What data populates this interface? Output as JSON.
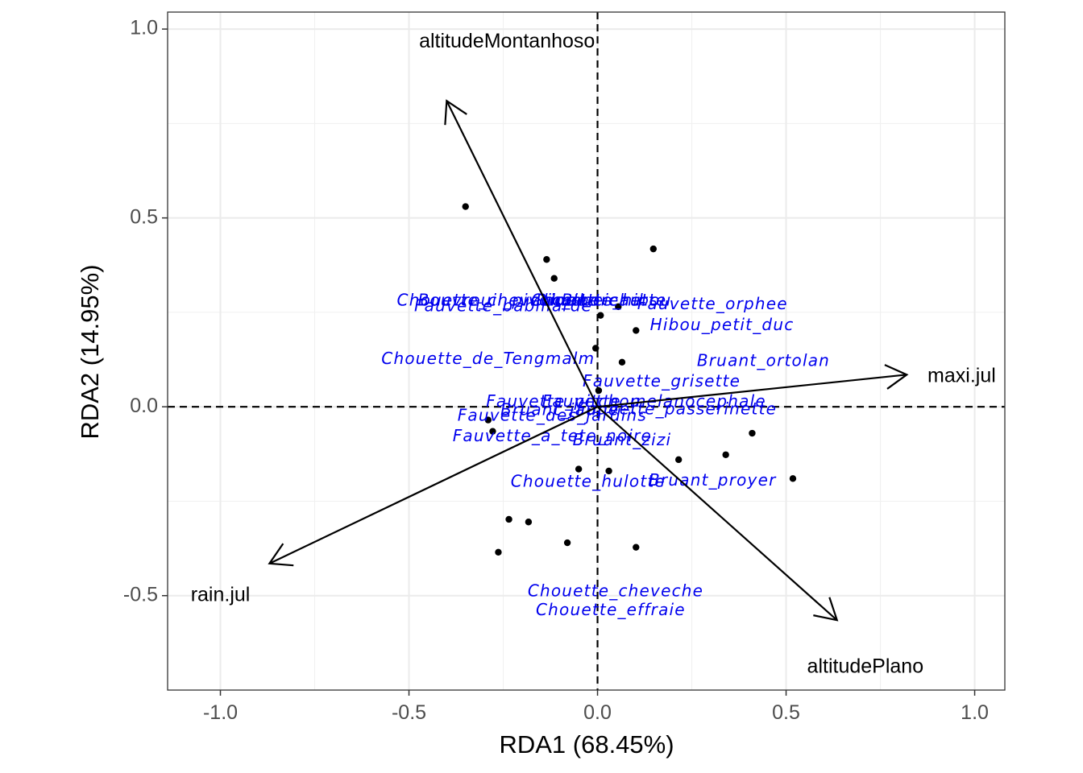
{
  "chart_data": {
    "type": "scatter",
    "xlabel": "RDA1 (68.45%)",
    "ylabel": "RDA2 (14.95%)",
    "xlim": [
      -1.14,
      1.08
    ],
    "ylim": [
      -0.75,
      1.045
    ],
    "x_ticks": [
      -1.0,
      -0.5,
      0.0,
      0.5,
      1.0
    ],
    "x_tick_labels": [
      "-1.0",
      "-0.5",
      "0.0",
      "0.5",
      "1.0"
    ],
    "y_ticks": [
      -0.5,
      0.0,
      0.5,
      1.0
    ],
    "y_tick_labels": [
      "-0.5",
      "0.0",
      "0.5",
      "1.0"
    ],
    "grid": true,
    "reference_lines": {
      "x": 0,
      "y": 0,
      "style": "dashed"
    },
    "sites": [
      {
        "x": -0.35,
        "y": 0.53
      },
      {
        "x": -0.135,
        "y": 0.39
      },
      {
        "x": -0.115,
        "y": 0.34
      },
      {
        "x": 0.148,
        "y": 0.418
      },
      {
        "x": 0.055,
        "y": 0.265
      },
      {
        "x": 0.008,
        "y": 0.242
      },
      {
        "x": 0.102,
        "y": 0.202
      },
      {
        "x": -0.005,
        "y": 0.155
      },
      {
        "x": 0.065,
        "y": 0.118
      },
      {
        "x": 0.003,
        "y": 0.043
      },
      {
        "x": -0.29,
        "y": -0.035
      },
      {
        "x": -0.278,
        "y": -0.065
      },
      {
        "x": 0.41,
        "y": -0.07
      },
      {
        "x": 0.34,
        "y": -0.127
      },
      {
        "x": 0.215,
        "y": -0.14
      },
      {
        "x": 0.518,
        "y": -0.19
      },
      {
        "x": -0.05,
        "y": -0.165
      },
      {
        "x": 0.03,
        "y": -0.17
      },
      {
        "x": -0.235,
        "y": -0.298
      },
      {
        "x": -0.183,
        "y": -0.305
      },
      {
        "x": -0.08,
        "y": -0.36
      },
      {
        "x": 0.102,
        "y": -0.372
      },
      {
        "x": -0.263,
        "y": -0.385
      }
    ],
    "species": [
      {
        "name": "Chouette_chevechette",
        "x": -0.265,
        "y": 0.28
      },
      {
        "name": "Bouvreuil_pivoine",
        "x": -0.265,
        "y": 0.28
      },
      {
        "name": "Bihoreau",
        "x": 0.01,
        "y": 0.28
      },
      {
        "name": "Chouette_hibou",
        "x": 0.01,
        "y": 0.28
      },
      {
        "name": "Pic_epeichette",
        "x": 0.01,
        "y": 0.28
      },
      {
        "name": "Fauvette_babillarde",
        "x": -0.25,
        "y": 0.265
      },
      {
        "name": "Fauvette_orphee",
        "x": 0.305,
        "y": 0.27
      },
      {
        "name": "Hibou_petit_duc",
        "x": 0.33,
        "y": 0.215
      },
      {
        "name": "Chouette_de_Tengmalm",
        "x": -0.29,
        "y": 0.125
      },
      {
        "name": "Bruant_ortolan",
        "x": 0.44,
        "y": 0.12
      },
      {
        "name": "Fauvette_grisette",
        "x": 0.17,
        "y": 0.065
      },
      {
        "name": "Fauvette_pitchou",
        "x": -0.09,
        "y": 0.012
      },
      {
        "name": "Fauvette_melanocephale",
        "x": 0.15,
        "y": 0.012
      },
      {
        "name": "Bruant_jaune",
        "x": -0.1,
        "y": -0.01
      },
      {
        "name": "Fauvette_passerinette",
        "x": 0.21,
        "y": -0.008
      },
      {
        "name": "Fauvette_des_jardins",
        "x": -0.12,
        "y": -0.025
      },
      {
        "name": "Fauvette_a_tete_noire",
        "x": -0.12,
        "y": -0.08
      },
      {
        "name": "Bruant_zizi",
        "x": 0.065,
        "y": -0.09
      },
      {
        "name": "Chouette_hulotte",
        "x": -0.025,
        "y": -0.2
      },
      {
        "name": "Bruant_proyer",
        "x": 0.305,
        "y": -0.197
      },
      {
        "name": "Chouette_cheveche",
        "x": 0.048,
        "y": -0.49
      },
      {
        "name": "Chouette_effraie",
        "x": 0.035,
        "y": -0.54
      }
    ],
    "biplot": [
      {
        "name": "altitudeMontanhoso",
        "x": -0.4,
        "y": 0.81,
        "label_x": -0.24,
        "label_y": 0.965,
        "anchor": "middle"
      },
      {
        "name": "maxi.jul",
        "x": 0.82,
        "y": 0.085,
        "label_x": 0.875,
        "label_y": 0.08,
        "anchor": "start"
      },
      {
        "name": "rain.jul",
        "x": -0.87,
        "y": -0.415,
        "label_x": -1.0,
        "label_y": -0.5,
        "anchor": "middle"
      },
      {
        "name": "altitudePlano",
        "x": 0.635,
        "y": -0.565,
        "label_x": 0.71,
        "label_y": -0.69,
        "anchor": "middle"
      }
    ]
  }
}
